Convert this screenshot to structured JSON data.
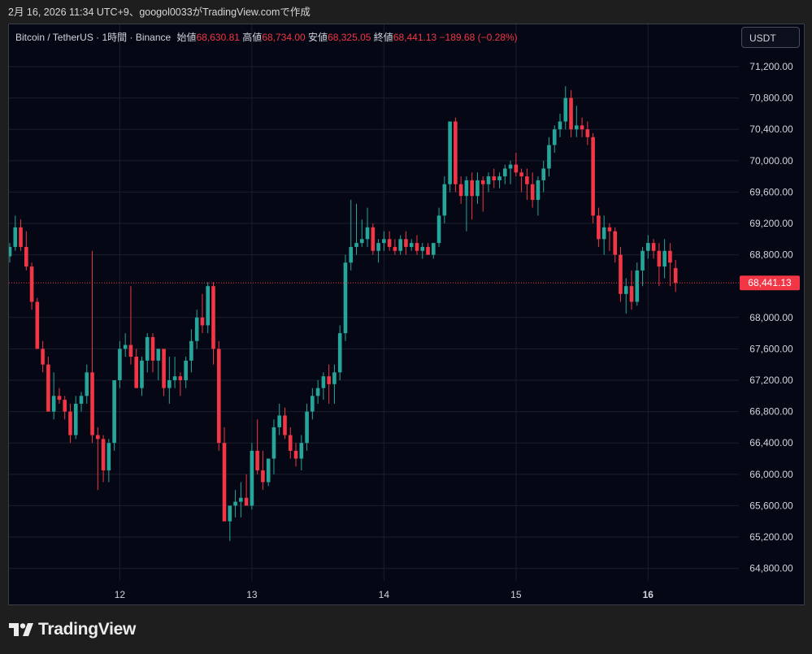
{
  "caption": "2月 16, 2026 11:34 UTC+9、googol0033がTradingView.comで作成",
  "legend": {
    "symbol": "Bitcoin / TetherUS · 1時間 · Binance",
    "open_label": "始値",
    "open": "68,630.81",
    "high_label": "高値",
    "high": "68,734.00",
    "low_label": "安値",
    "low": "68,325.05",
    "close_label": "終値",
    "close": "68,441.13",
    "change": "−189.68 (−0.28%)"
  },
  "currency_button": "USDT",
  "brand": "TradingView",
  "colors": {
    "background": "#050814",
    "grid": "#1a1e2c",
    "up": "#26a69a",
    "down": "#f23645",
    "axis_text": "#d1d4dc"
  },
  "chart_data": {
    "type": "candlestick",
    "ylim": [
      64500,
      71580
    ],
    "y_ticks": [
      {
        "value": 71200,
        "label": "71,200.00"
      },
      {
        "value": 70800,
        "label": "70,800.00"
      },
      {
        "value": 70400,
        "label": "70,400.00"
      },
      {
        "value": 70000,
        "label": "70,000.00"
      },
      {
        "value": 69600,
        "label": "69,600.00"
      },
      {
        "value": 69200,
        "label": "69,200.00"
      },
      {
        "value": 68800,
        "label": "68,800.00"
      },
      {
        "value": 68000,
        "label": "68,000.00"
      },
      {
        "value": 67600,
        "label": "67,600.00"
      },
      {
        "value": 67200,
        "label": "67,200.00"
      },
      {
        "value": 66800,
        "label": "66,800.00"
      },
      {
        "value": 66400,
        "label": "66,400.00"
      },
      {
        "value": 66000,
        "label": "66,000.00"
      },
      {
        "value": 65600,
        "label": "65,600.00"
      },
      {
        "value": 65200,
        "label": "65,200.00"
      },
      {
        "value": 64800,
        "label": "64,800.00"
      }
    ],
    "last_price": {
      "value": 68441.13,
      "label": "68,441.13"
    },
    "x_ticks": [
      {
        "index": 20,
        "label": "12",
        "bold": false
      },
      {
        "index": 44,
        "label": "13",
        "bold": false
      },
      {
        "index": 68,
        "label": "14",
        "bold": false
      },
      {
        "index": 92,
        "label": "15",
        "bold": false
      },
      {
        "index": 116,
        "label": "16",
        "bold": true
      }
    ],
    "candles": [
      [
        68780,
        68950,
        68700,
        68900
      ],
      [
        68900,
        69300,
        68850,
        69150
      ],
      [
        69150,
        69250,
        68850,
        68900
      ],
      [
        68900,
        69100,
        68600,
        68650
      ],
      [
        68650,
        68700,
        68100,
        68200
      ],
      [
        68200,
        68250,
        67600,
        67600
      ],
      [
        67600,
        67700,
        67300,
        67400
      ],
      [
        67400,
        67500,
        66800,
        66800
      ],
      [
        66800,
        67300,
        66700,
        67000
      ],
      [
        67000,
        67100,
        66900,
        66950
      ],
      [
        66950,
        67000,
        66700,
        66800
      ],
      [
        66800,
        66900,
        66400,
        66500
      ],
      [
        66500,
        67000,
        66450,
        66900
      ],
      [
        66900,
        67050,
        66800,
        67000
      ],
      [
        67000,
        67400,
        66900,
        67300
      ],
      [
        67300,
        68850,
        66400,
        66500
      ],
      [
        66500,
        66600,
        65800,
        66450
      ],
      [
        66450,
        66500,
        65900,
        66050
      ],
      [
        66050,
        66450,
        65900,
        66400
      ],
      [
        66400,
        67200,
        66300,
        67200
      ],
      [
        67200,
        67700,
        67100,
        67600
      ],
      [
        67600,
        67800,
        67500,
        67650
      ],
      [
        67650,
        68400,
        67400,
        67500
      ],
      [
        67500,
        67600,
        67100,
        67100
      ],
      [
        67100,
        67500,
        67000,
        67450
      ],
      [
        67450,
        67800,
        67300,
        67750
      ],
      [
        67750,
        67800,
        67300,
        67450
      ],
      [
        67450,
        67600,
        67200,
        67600
      ],
      [
        67600,
        67600,
        67000,
        67100
      ],
      [
        67100,
        67500,
        66900,
        67200
      ],
      [
        67200,
        67500,
        67100,
        67250
      ],
      [
        67250,
        67300,
        67000,
        67200
      ],
      [
        67200,
        67500,
        67100,
        67450
      ],
      [
        67450,
        67850,
        67300,
        67700
      ],
      [
        67700,
        68100,
        67600,
        68000
      ],
      [
        68000,
        68300,
        67800,
        67900
      ],
      [
        67900,
        68450,
        67800,
        68400
      ],
      [
        68400,
        68450,
        67400,
        67600
      ],
      [
        67600,
        67700,
        66300,
        66400
      ],
      [
        66400,
        66600,
        65400,
        65400
      ],
      [
        65400,
        65600,
        65150,
        65600
      ],
      [
        65600,
        65800,
        65450,
        65650
      ],
      [
        65650,
        65900,
        65450,
        65700
      ],
      [
        65700,
        66000,
        65600,
        65600
      ],
      [
        65600,
        66400,
        65550,
        66300
      ],
      [
        66300,
        66700,
        66000,
        66050
      ],
      [
        66050,
        66300,
        65800,
        65900
      ],
      [
        65900,
        66200,
        65850,
        66200
      ],
      [
        66200,
        66700,
        66000,
        66600
      ],
      [
        66600,
        66900,
        66500,
        66750
      ],
      [
        66750,
        66850,
        66450,
        66500
      ],
      [
        66500,
        66600,
        66200,
        66300
      ],
      [
        66300,
        66400,
        66100,
        66200
      ],
      [
        66200,
        66500,
        66050,
        66400
      ],
      [
        66400,
        66900,
        66300,
        66800
      ],
      [
        66800,
        67100,
        66700,
        67000
      ],
      [
        67000,
        67200,
        66900,
        67100
      ],
      [
        67100,
        67300,
        66950,
        67250
      ],
      [
        67250,
        67400,
        66900,
        67150
      ],
      [
        67150,
        67400,
        66900,
        67300
      ],
      [
        67300,
        67900,
        67200,
        67800
      ],
      [
        67800,
        68800,
        67700,
        68700
      ],
      [
        68700,
        69500,
        68600,
        68900
      ],
      [
        68900,
        69450,
        68800,
        68950
      ],
      [
        68950,
        69250,
        68900,
        69000
      ],
      [
        69000,
        69400,
        68900,
        69150
      ],
      [
        69150,
        69200,
        68800,
        68850
      ],
      [
        68850,
        69000,
        68700,
        68950
      ],
      [
        68950,
        69100,
        68850,
        69000
      ],
      [
        69000,
        69100,
        68850,
        68900
      ],
      [
        68900,
        69000,
        68800,
        68850
      ],
      [
        68850,
        69050,
        68800,
        69000
      ],
      [
        69000,
        69100,
        68800,
        68900
      ],
      [
        68900,
        69000,
        68850,
        68950
      ],
      [
        68950,
        69050,
        68800,
        68850
      ],
      [
        68850,
        68950,
        68750,
        68900
      ],
      [
        68900,
        68950,
        68800,
        68800
      ],
      [
        68800,
        68950,
        68750,
        68950
      ],
      [
        68950,
        69400,
        68900,
        69300
      ],
      [
        69300,
        69800,
        69200,
        69700
      ],
      [
        69700,
        70500,
        69600,
        70500
      ],
      [
        70500,
        70550,
        69600,
        69700
      ],
      [
        69700,
        69800,
        69450,
        69550
      ],
      [
        69550,
        69800,
        69100,
        69750
      ],
      [
        69750,
        69850,
        69250,
        69550
      ],
      [
        69550,
        69850,
        69450,
        69750
      ],
      [
        69750,
        69800,
        69350,
        69700
      ],
      [
        69700,
        69850,
        69600,
        69800
      ],
      [
        69800,
        69900,
        69650,
        69750
      ],
      [
        69750,
        69850,
        69650,
        69800
      ],
      [
        69800,
        69950,
        69700,
        69900
      ],
      [
        69900,
        70000,
        69700,
        69950
      ],
      [
        69950,
        70100,
        69800,
        69850
      ],
      [
        69850,
        69900,
        69600,
        69800
      ],
      [
        69800,
        69900,
        69500,
        69700
      ],
      [
        69700,
        69850,
        69400,
        69500
      ],
      [
        69500,
        69800,
        69300,
        69750
      ],
      [
        69750,
        70000,
        69600,
        69900
      ],
      [
        69900,
        70300,
        69800,
        70200
      ],
      [
        70200,
        70450,
        70100,
        70400
      ],
      [
        70400,
        70600,
        70300,
        70500
      ],
      [
        70500,
        70950,
        70400,
        70800
      ],
      [
        70800,
        70900,
        70300,
        70400
      ],
      [
        70400,
        70700,
        70300,
        70450
      ],
      [
        70450,
        70550,
        70300,
        70400
      ],
      [
        70400,
        70500,
        70200,
        70300
      ],
      [
        70300,
        70350,
        69200,
        69300
      ],
      [
        69300,
        69400,
        68900,
        69000
      ],
      [
        69000,
        69300,
        68800,
        69150
      ],
      [
        69150,
        69200,
        68850,
        69100
      ],
      [
        69100,
        69150,
        68700,
        68800
      ],
      [
        68800,
        68900,
        68200,
        68300
      ],
      [
        68300,
        68500,
        68050,
        68400
      ],
      [
        68400,
        68600,
        68100,
        68200
      ],
      [
        68200,
        68700,
        68150,
        68600
      ],
      [
        68600,
        68900,
        68400,
        68850
      ],
      [
        68850,
        69050,
        68750,
        68950
      ],
      [
        68950,
        69000,
        68750,
        68850
      ],
      [
        68850,
        68950,
        68400,
        68650
      ],
      [
        68650,
        69000,
        68500,
        68850
      ],
      [
        68850,
        68950,
        68400,
        68700
      ],
      [
        68630.81,
        68734,
        68325.05,
        68441.13
      ]
    ]
  }
}
